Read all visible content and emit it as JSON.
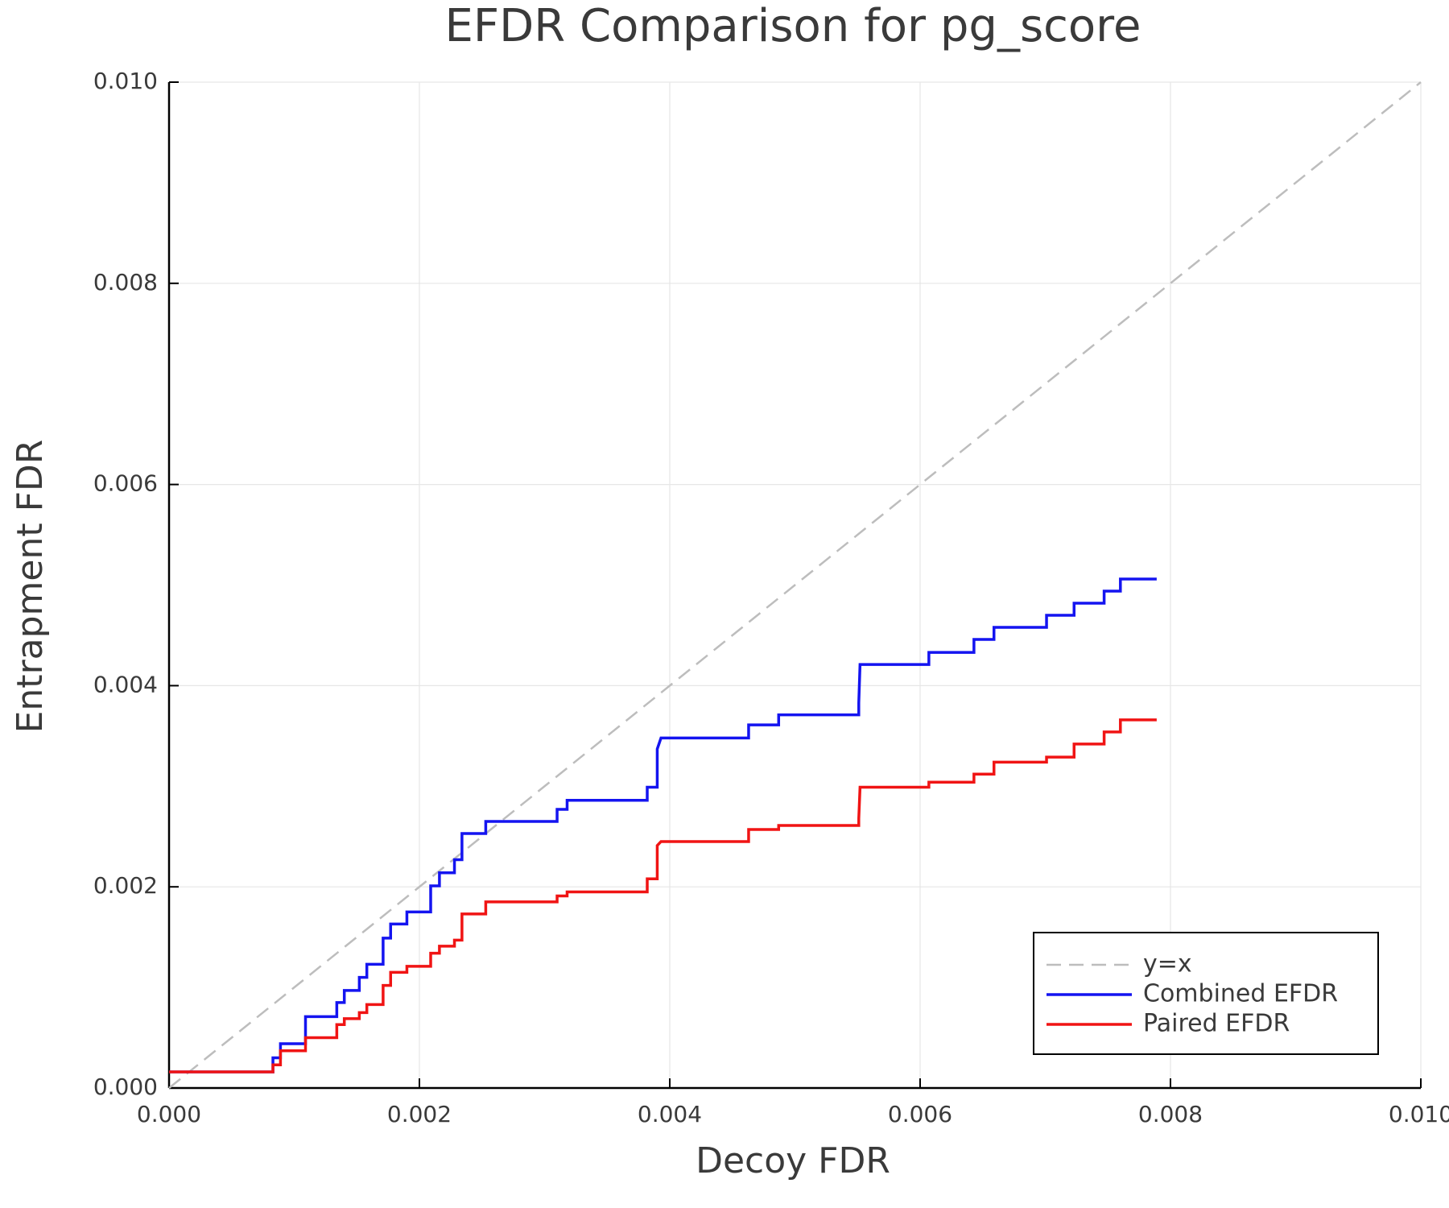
{
  "chart_data": {
    "type": "line",
    "title": "EFDR Comparison for pg_score",
    "x_label": "Decoy FDR",
    "y_label": "Entrapment FDR",
    "xlim": [
      0,
      0.01
    ],
    "ylim": [
      0,
      0.01
    ],
    "xticks": [
      {
        "value": 0,
        "label": "0.000"
      },
      {
        "value": 0.002,
        "label": "0.002"
      },
      {
        "value": 0.004,
        "label": "0.004"
      },
      {
        "value": 0.006,
        "label": "0.006"
      },
      {
        "value": 0.008,
        "label": "0.008"
      },
      {
        "value": 0.01,
        "label": "0.010"
      }
    ],
    "yticks": [
      {
        "value": 0,
        "label": "0.000"
      },
      {
        "value": 0.002,
        "label": "0.002"
      },
      {
        "value": 0.004,
        "label": "0.004"
      },
      {
        "value": 0.006,
        "label": "0.006"
      },
      {
        "value": 0.008,
        "label": "0.008"
      },
      {
        "value": 0.01,
        "label": "0.010"
      }
    ],
    "grid": true,
    "legend": "lower right",
    "series": [
      {
        "name": "y=x",
        "color": "#bdbdbd",
        "dashed": true,
        "x": [
          0,
          0.01
        ],
        "values": [
          0,
          0.01
        ]
      },
      {
        "name": "Combined EFDR",
        "color": "#1414f0",
        "dashed": false,
        "x": [
          0,
          0.00083,
          0.00083,
          0.00089,
          0.00089,
          0.00109,
          0.00109,
          0.00134,
          0.00134,
          0.0014,
          0.0014,
          0.00152,
          0.00152,
          0.00158,
          0.00158,
          0.00171,
          0.00171,
          0.00177,
          0.00177,
          0.0019,
          0.0019,
          0.00209,
          0.00209,
          0.00216,
          0.00216,
          0.00228,
          0.00228,
          0.00234,
          0.00234,
          0.00253,
          0.00253,
          0.0031,
          0.0031,
          0.00318,
          0.00318,
          0.00382,
          0.00382,
          0.0039,
          0.0039,
          0.00393,
          0.00463,
          0.00463,
          0.00487,
          0.00487,
          0.00551,
          0.00551,
          0.00552,
          0.00607,
          0.00607,
          0.00643,
          0.00643,
          0.00659,
          0.00659,
          0.00701,
          0.00701,
          0.00723,
          0.00723,
          0.00747,
          0.00747,
          0.0076,
          0.0076,
          0.00789
        ],
        "values": [
          0.00016,
          0.00016,
          0.0003,
          0.0003,
          0.00044,
          0.00044,
          0.00071,
          0.00071,
          0.00085,
          0.00085,
          0.00097,
          0.00097,
          0.0011,
          0.0011,
          0.00123,
          0.00123,
          0.00149,
          0.00149,
          0.00163,
          0.00163,
          0.00175,
          0.00175,
          0.00201,
          0.00201,
          0.00214,
          0.00214,
          0.00227,
          0.00227,
          0.00253,
          0.00253,
          0.00265,
          0.00265,
          0.00277,
          0.00277,
          0.00286,
          0.00286,
          0.00299,
          0.00299,
          0.00337,
          0.00348,
          0.00348,
          0.00361,
          0.00361,
          0.00371,
          0.00371,
          0.00383,
          0.00421,
          0.00421,
          0.00433,
          0.00433,
          0.00446,
          0.00446,
          0.00458,
          0.00458,
          0.0047,
          0.0047,
          0.00482,
          0.00482,
          0.00494,
          0.00494,
          0.00506,
          0.00506
        ]
      },
      {
        "name": "Paired EFDR",
        "color": "#f01414",
        "dashed": false,
        "x": [
          0,
          0.00083,
          0.00083,
          0.00089,
          0.00089,
          0.00109,
          0.00109,
          0.00134,
          0.00134,
          0.0014,
          0.0014,
          0.00152,
          0.00152,
          0.00158,
          0.00158,
          0.00171,
          0.00171,
          0.00177,
          0.00177,
          0.0019,
          0.0019,
          0.00209,
          0.00209,
          0.00216,
          0.00216,
          0.00228,
          0.00228,
          0.00234,
          0.00234,
          0.00253,
          0.00253,
          0.0031,
          0.0031,
          0.00318,
          0.00318,
          0.00382,
          0.00382,
          0.0039,
          0.0039,
          0.00393,
          0.00463,
          0.00463,
          0.00487,
          0.00487,
          0.00551,
          0.00551,
          0.00552,
          0.00607,
          0.00607,
          0.00643,
          0.00643,
          0.00659,
          0.00659,
          0.00701,
          0.00701,
          0.00723,
          0.00723,
          0.00747,
          0.00747,
          0.0076,
          0.0076,
          0.00789
        ],
        "values": [
          0.00016,
          0.00016,
          0.00023,
          0.00023,
          0.00037,
          0.00037,
          0.0005,
          0.0005,
          0.00063,
          0.00063,
          0.00069,
          0.00069,
          0.00075,
          0.00075,
          0.00083,
          0.00083,
          0.00102,
          0.00102,
          0.00115,
          0.00115,
          0.00121,
          0.00121,
          0.00134,
          0.00134,
          0.00141,
          0.00141,
          0.00147,
          0.00147,
          0.00173,
          0.00173,
          0.00185,
          0.00185,
          0.00191,
          0.00191,
          0.00195,
          0.00195,
          0.00208,
          0.00208,
          0.00241,
          0.00245,
          0.00245,
          0.00257,
          0.00257,
          0.00261,
          0.00261,
          0.00268,
          0.00299,
          0.00299,
          0.00304,
          0.00304,
          0.00312,
          0.00312,
          0.00324,
          0.00324,
          0.00329,
          0.00329,
          0.00342,
          0.00342,
          0.00354,
          0.00354,
          0.00366,
          0.00366
        ]
      }
    ]
  }
}
